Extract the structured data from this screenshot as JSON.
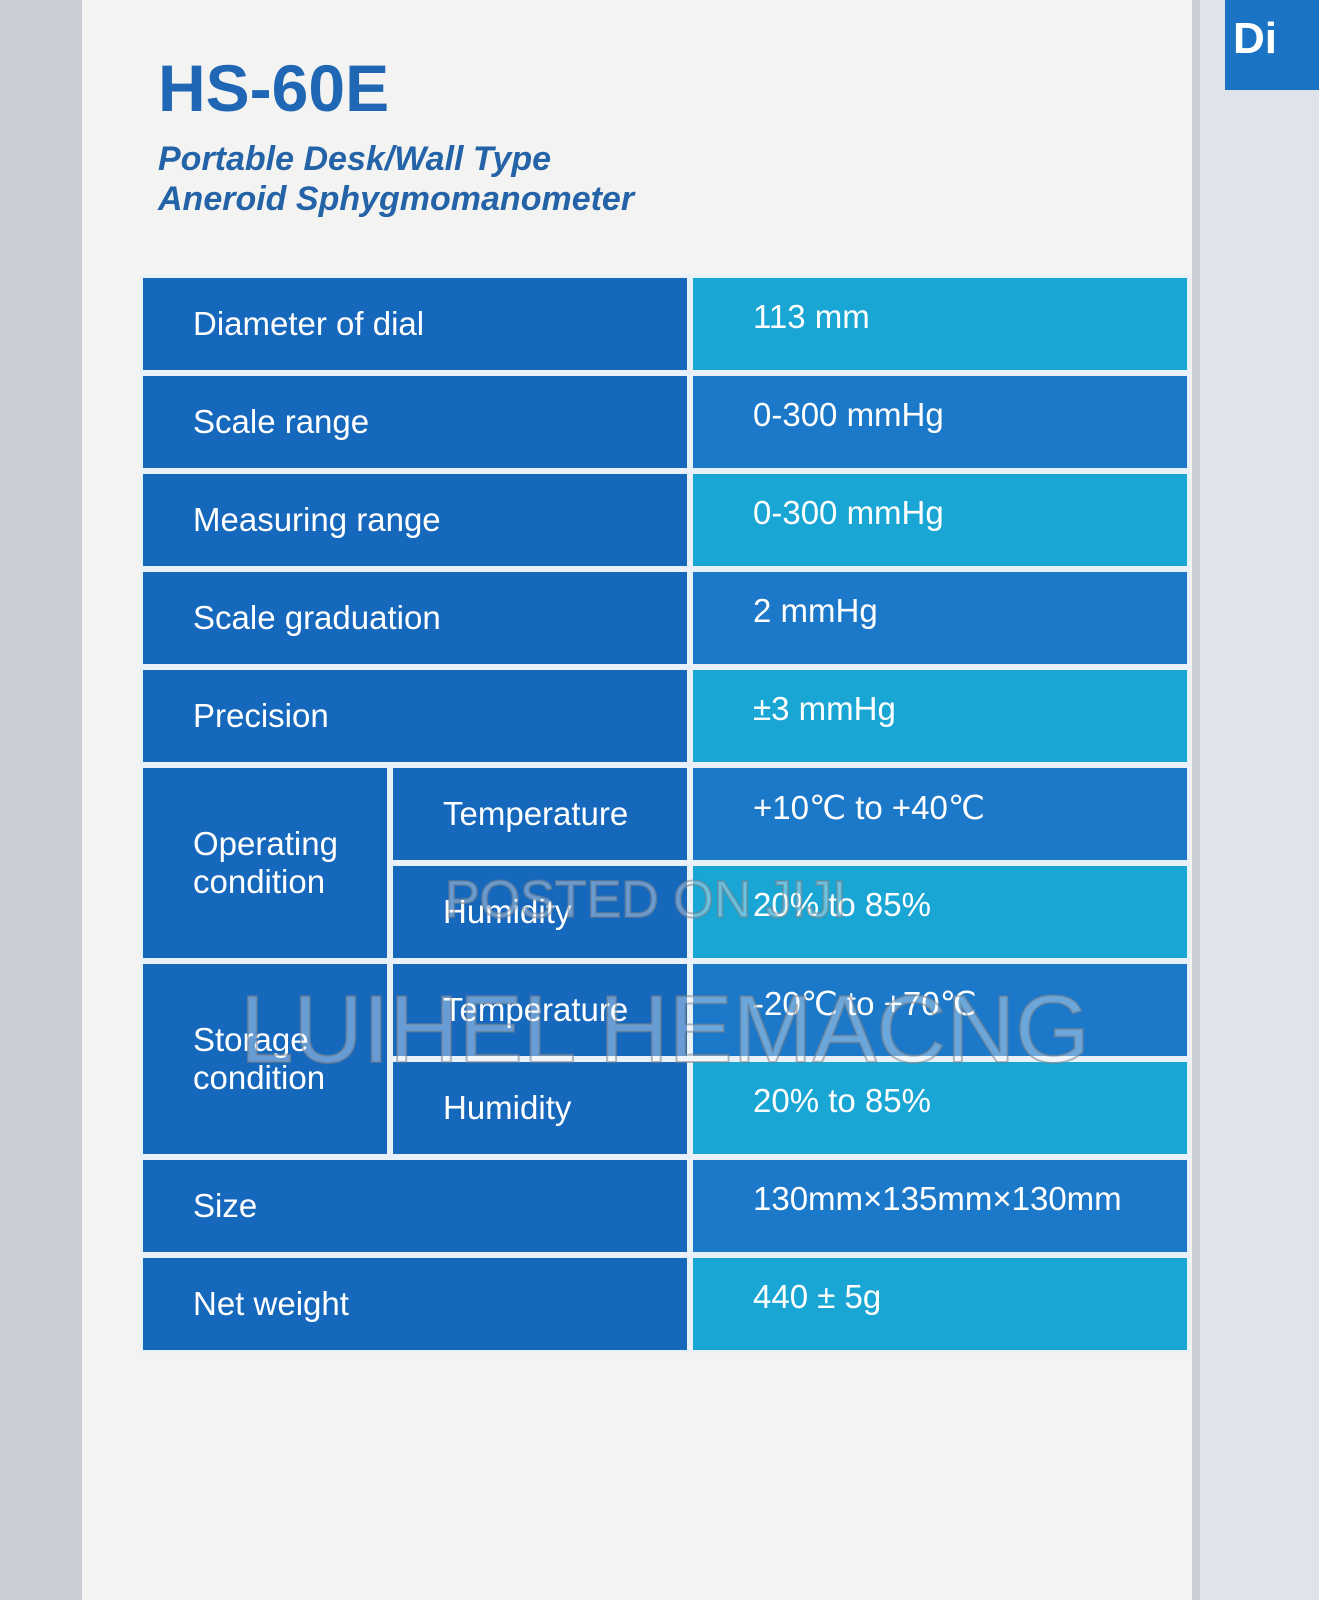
{
  "header": {
    "model": "HS-60E",
    "subtitle": [
      "Portable Desk/Wall Type",
      "Aneroid Sphygmomanometer"
    ]
  },
  "side_label": "Di",
  "table": {
    "rows": [
      {
        "label": "Diameter of dial",
        "value": "113 mm"
      },
      {
        "label": "Scale range",
        "value": "0-300 mmHg"
      },
      {
        "label": "Measuring range",
        "value": "0-300 mmHg"
      },
      {
        "label": "Scale graduation",
        "value": "2 mmHg"
      },
      {
        "label": "Precision",
        "value": "±3 mmHg"
      },
      {
        "group": "Operating condition",
        "items": [
          {
            "label": "Temperature",
            "value": "+10℃ to +40℃"
          },
          {
            "label": "Humidity",
            "value": "20% to 85%"
          }
        ]
      },
      {
        "group": "Storage condition",
        "items": [
          {
            "label": "Temperature",
            "value": "-20℃  to +70℃"
          },
          {
            "label": "Humidity",
            "value": "20% to 85%"
          }
        ]
      },
      {
        "label": "Size",
        "value": "130mm×135mm×130mm"
      },
      {
        "label": "Net weight",
        "value": "440 ± 5g"
      }
    ]
  },
  "watermark": [
    "POSTED ON JIJI",
    "LUIHEL HEMACNG"
  ]
}
